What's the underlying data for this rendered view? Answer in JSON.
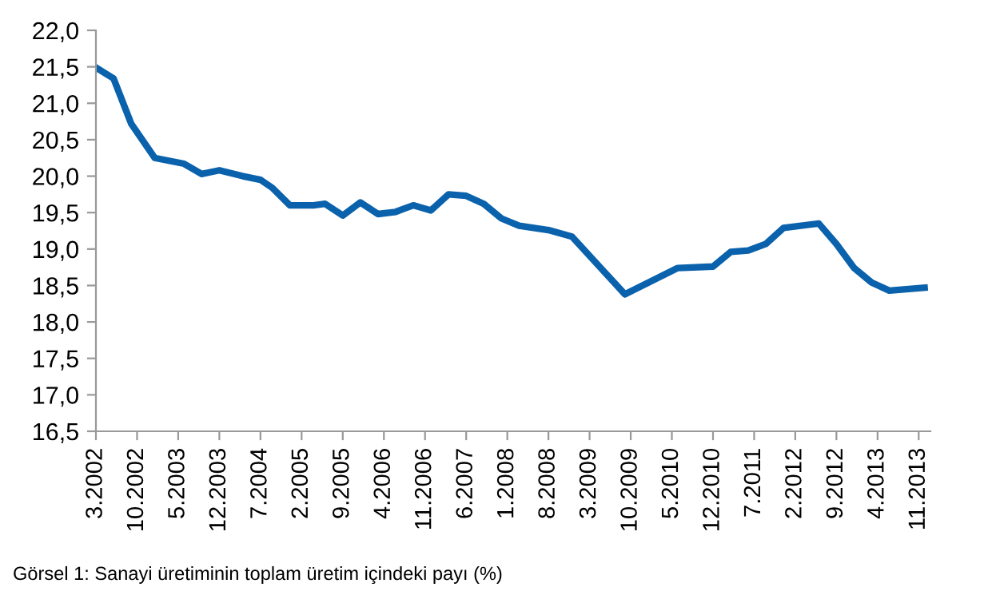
{
  "chart_data": {
    "type": "line",
    "x": [
      "2002-03",
      "2002-06",
      "2002-09",
      "2003-01",
      "2003-06",
      "2003-09",
      "2003-12",
      "2004-04",
      "2004-07",
      "2004-09",
      "2004-12",
      "2005-04",
      "2005-06",
      "2005-09",
      "2005-12",
      "2006-03",
      "2006-06",
      "2006-09",
      "2006-12",
      "2007-03",
      "2007-06",
      "2007-09",
      "2007-12",
      "2008-03",
      "2008-08",
      "2008-12",
      "2009-09",
      "2010-06",
      "2010-12",
      "2011-03",
      "2011-06",
      "2011-09",
      "2011-12",
      "2012-06",
      "2012-09",
      "2012-12",
      "2013-03",
      "2013-06",
      "2013-12"
    ],
    "series": [
      {
        "color": "#0b62ac",
        "values": [
          21.49,
          21.34,
          20.72,
          20.25,
          20.17,
          20.03,
          20.08,
          20.0,
          19.95,
          19.84,
          19.6,
          19.6,
          19.62,
          19.46,
          19.64,
          19.48,
          19.51,
          19.6,
          19.53,
          19.75,
          19.73,
          19.62,
          19.42,
          19.32,
          19.26,
          19.17,
          18.38,
          18.74,
          18.76,
          18.96,
          18.98,
          19.07,
          19.29,
          19.35,
          19.07,
          18.74,
          18.54,
          18.43,
          18.47
        ]
      }
    ],
    "xlim": [
      "2002-03",
      "2014-01"
    ],
    "xticks": [
      {
        "value": "2002-03",
        "label": "3.2002"
      },
      {
        "value": "2002-10",
        "label": "10.2002"
      },
      {
        "value": "2003-05",
        "label": "5.2003"
      },
      {
        "value": "2003-12",
        "label": "12.2003"
      },
      {
        "value": "2004-07",
        "label": "7.2004"
      },
      {
        "value": "2005-02",
        "label": "2.2005"
      },
      {
        "value": "2005-09",
        "label": "9.2005"
      },
      {
        "value": "2006-04",
        "label": "4.2006"
      },
      {
        "value": "2006-11",
        "label": "11.2006"
      },
      {
        "value": "2007-06",
        "label": "6.2007"
      },
      {
        "value": "2008-01",
        "label": "1.2008"
      },
      {
        "value": "2008-08",
        "label": "8.2008"
      },
      {
        "value": "2009-03",
        "label": "3.2009"
      },
      {
        "value": "2009-10",
        "label": "10.2009"
      },
      {
        "value": "2010-05",
        "label": "5.2010"
      },
      {
        "value": "2010-12",
        "label": "12.2010"
      },
      {
        "value": "2011-07",
        "label": "7.2011"
      },
      {
        "value": "2012-02",
        "label": "2.2012"
      },
      {
        "value": "2012-09",
        "label": "9.2012"
      },
      {
        "value": "2013-04",
        "label": "4.2013"
      },
      {
        "value": "2013-11",
        "label": "11.2013"
      }
    ],
    "ylim": [
      16.5,
      22.0
    ],
    "yticks": [
      {
        "value": 16.5,
        "label": "16,5"
      },
      {
        "value": 17.0,
        "label": "17,0"
      },
      {
        "value": 17.5,
        "label": "17,5"
      },
      {
        "value": 18.0,
        "label": "18,0"
      },
      {
        "value": 18.5,
        "label": "18,5"
      },
      {
        "value": 19.0,
        "label": "19,0"
      },
      {
        "value": 19.5,
        "label": "19,5"
      },
      {
        "value": 20.0,
        "label": "20,0"
      },
      {
        "value": 20.5,
        "label": "20,5"
      },
      {
        "value": 21.0,
        "label": "21,0"
      },
      {
        "value": 21.5,
        "label": "21,5"
      },
      {
        "value": 22.0,
        "label": "22,0"
      }
    ],
    "grid": false,
    "legend": false,
    "marker": "none",
    "line_style": "solid",
    "annotations": [
      "Görsel 1: Sanayi üretiminin toplam üretim içindeki payı (%)"
    ]
  }
}
